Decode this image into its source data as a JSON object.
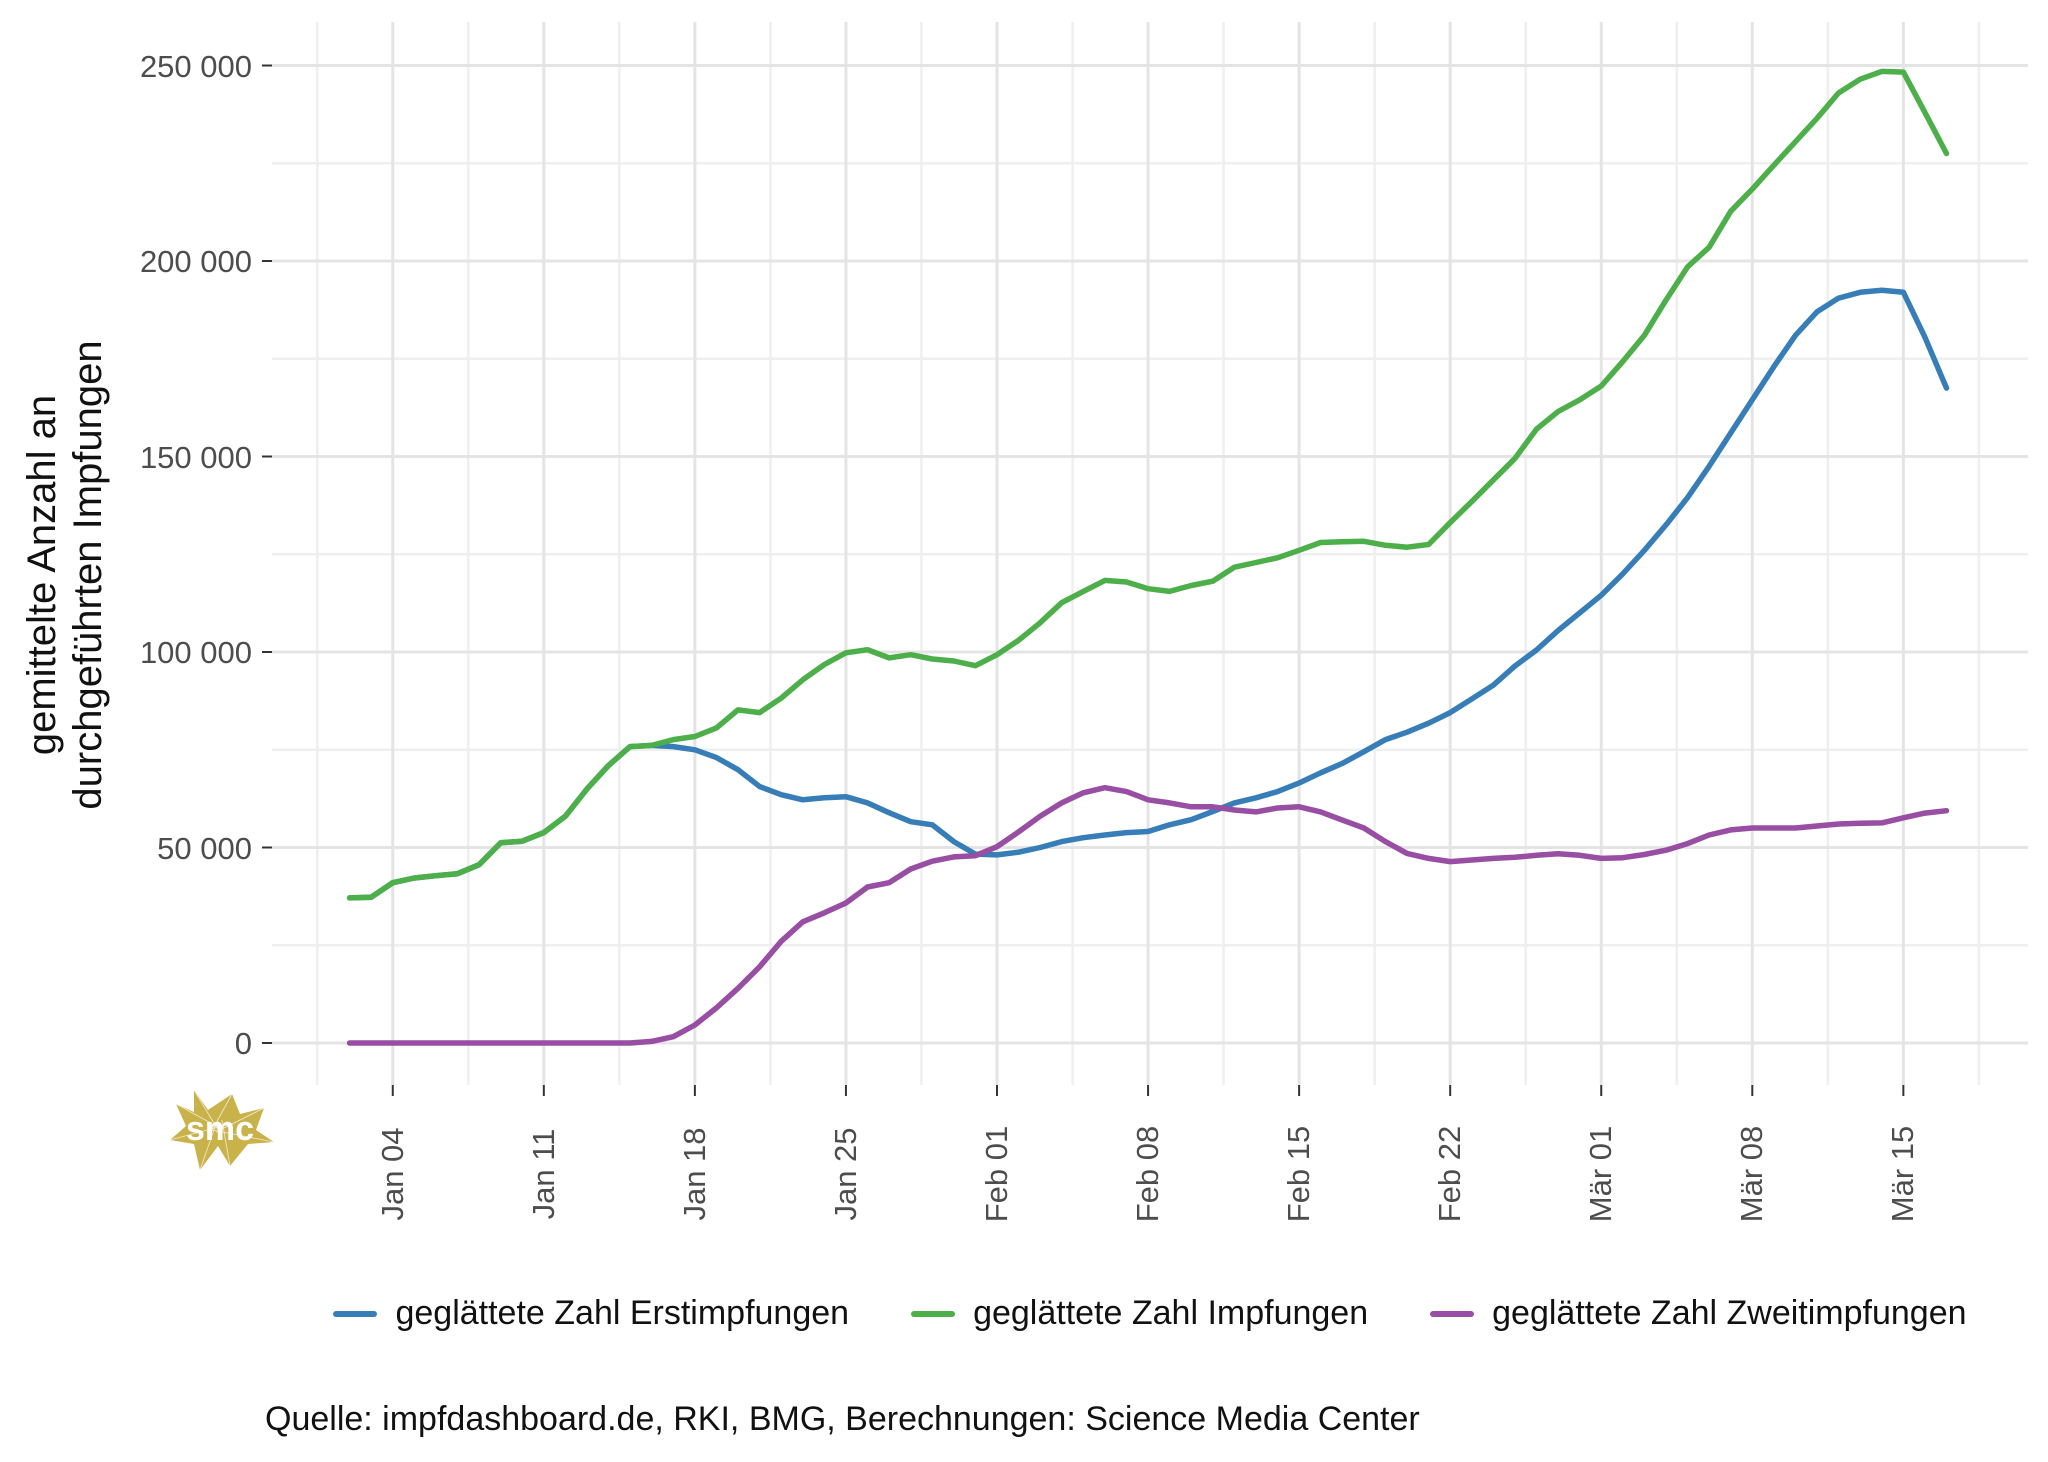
{
  "chart_data": {
    "type": "line",
    "title": "",
    "ylabel_line1": "gemittelte Anzahl an",
    "ylabel_line2": "durchgeführten Impfungen",
    "xlabel": "",
    "ylim": [
      0,
      250000
    ],
    "grid": "major and minor, light gray on white",
    "legend_position": "bottom",
    "dates": [
      "2021-01-02",
      "2021-01-03",
      "2021-01-04",
      "2021-01-05",
      "2021-01-06",
      "2021-01-07",
      "2021-01-08",
      "2021-01-09",
      "2021-01-10",
      "2021-01-11",
      "2021-01-12",
      "2021-01-13",
      "2021-01-14",
      "2021-01-15",
      "2021-01-16",
      "2021-01-17",
      "2021-01-18",
      "2021-01-19",
      "2021-01-20",
      "2021-01-21",
      "2021-01-22",
      "2021-01-23",
      "2021-01-24",
      "2021-01-25",
      "2021-01-26",
      "2021-01-27",
      "2021-01-28",
      "2021-01-29",
      "2021-01-30",
      "2021-01-31",
      "2021-02-01",
      "2021-02-02",
      "2021-02-03",
      "2021-02-04",
      "2021-02-05",
      "2021-02-06",
      "2021-02-07",
      "2021-02-08",
      "2021-02-09",
      "2021-02-10",
      "2021-02-11",
      "2021-02-12",
      "2021-02-13",
      "2021-02-14",
      "2021-02-15",
      "2021-02-16",
      "2021-02-17",
      "2021-02-18",
      "2021-02-19",
      "2021-02-20",
      "2021-02-21",
      "2021-02-22",
      "2021-02-23",
      "2021-02-24",
      "2021-02-25",
      "2021-02-26",
      "2021-02-27",
      "2021-02-28",
      "2021-03-01",
      "2021-03-02",
      "2021-03-03",
      "2021-03-04",
      "2021-03-05",
      "2021-03-06",
      "2021-03-07",
      "2021-03-08",
      "2021-03-09",
      "2021-03-10",
      "2021-03-11",
      "2021-03-12",
      "2021-03-13",
      "2021-03-14",
      "2021-03-15",
      "2021-03-16",
      "2021-03-17"
    ],
    "series": [
      {
        "name": "geglättete Zahl Erstimpfungen",
        "slug": "erstimpfungen",
        "color": "#377EB8",
        "values": [
          37100,
          37300,
          41000,
          42200,
          42800,
          43300,
          45600,
          51200,
          51600,
          53800,
          58000,
          65000,
          71000,
          75800,
          76100,
          75800,
          75000,
          73000,
          69900,
          65600,
          63500,
          62200,
          62700,
          63000,
          61400,
          58900,
          56600,
          55800,
          51500,
          48300,
          48100,
          48800,
          50000,
          51500,
          52500,
          53200,
          53800,
          54100,
          55800,
          57100,
          59200,
          61400,
          62700,
          64300,
          66500,
          69100,
          71500,
          74500,
          77600,
          79500,
          81800,
          84500,
          88000,
          91500,
          96400,
          100500,
          105500,
          110000,
          114500,
          120000,
          126000,
          132500,
          139500,
          147500,
          156000,
          164500,
          173000,
          181000,
          187000,
          190500,
          192000,
          192500,
          192000,
          180500,
          167500
        ]
      },
      {
        "name": "geglättete Zahl Impfungen",
        "slug": "impfungen",
        "color": "#4DAF4A",
        "values": [
          37100,
          37300,
          41000,
          42200,
          42800,
          43300,
          45600,
          51200,
          51600,
          53800,
          58000,
          65000,
          71000,
          75800,
          76100,
          77600,
          78400,
          80600,
          85200,
          84500,
          88200,
          92900,
          96800,
          99800,
          100600,
          98500,
          99300,
          98200,
          97700,
          96500,
          99300,
          103000,
          107500,
          112600,
          115500,
          118300,
          117900,
          116200,
          115500,
          117000,
          118100,
          121700,
          122900,
          124100,
          126000,
          128000,
          128200,
          128300,
          127300,
          126800,
          127500,
          133100,
          138500,
          144000,
          149500,
          157000,
          161500,
          164500,
          168000,
          174300,
          181000,
          190000,
          198500,
          203500,
          212700,
          218400,
          224500,
          230500,
          236500,
          243000,
          246500,
          248500,
          248300,
          238000,
          227500
        ]
      },
      {
        "name": "geglättete Zahl Zweitimpfungen",
        "slug": "zweitimpfungen",
        "color": "#984EA3",
        "values": [
          0,
          0,
          0,
          0,
          0,
          0,
          0,
          0,
          0,
          0,
          0,
          0,
          0,
          0,
          400,
          1600,
          4600,
          9000,
          14000,
          19500,
          26000,
          31000,
          33300,
          35800,
          39900,
          41000,
          44500,
          46500,
          47600,
          47900,
          50200,
          54000,
          58000,
          61400,
          64000,
          65300,
          64300,
          62200,
          61400,
          60400,
          60400,
          59600,
          59100,
          60100,
          60400,
          59100,
          57000,
          55000,
          51500,
          48500,
          47200,
          46400,
          46800,
          47200,
          47500,
          48000,
          48400,
          48000,
          47200,
          47400,
          48200,
          49300,
          51000,
          53200,
          54500,
          55000,
          55000,
          55000,
          55500,
          56000,
          56200,
          56300,
          57600,
          58800,
          59400
        ]
      }
    ],
    "x_ticks": [
      {
        "date": "2021-01-04",
        "label": "Jan 04"
      },
      {
        "date": "2021-01-11",
        "label": "Jan 11"
      },
      {
        "date": "2021-01-18",
        "label": "Jan 18"
      },
      {
        "date": "2021-01-25",
        "label": "Jan 25"
      },
      {
        "date": "2021-02-01",
        "label": "Feb 01"
      },
      {
        "date": "2021-02-08",
        "label": "Feb 08"
      },
      {
        "date": "2021-02-15",
        "label": "Feb 15"
      },
      {
        "date": "2021-02-22",
        "label": "Feb 22"
      },
      {
        "date": "2021-03-01",
        "label": "Mär 01"
      },
      {
        "date": "2021-03-08",
        "label": "Mär 08"
      },
      {
        "date": "2021-03-15",
        "label": "Mär 15"
      }
    ],
    "y_ticks": [
      {
        "value": 0,
        "label": "0"
      },
      {
        "value": 50000,
        "label": "50 000"
      },
      {
        "value": 100000,
        "label": "100 000"
      },
      {
        "value": 150000,
        "label": "150 000"
      },
      {
        "value": 200000,
        "label": "200 000"
      },
      {
        "value": 250000,
        "label": "250 000"
      }
    ]
  },
  "source_note": "Quelle: impfdashboard.de, RKI, BMG, Berechnungen: Science Media Center",
  "logo": {
    "text": "smc",
    "color": "#C9B24A"
  },
  "colors": {
    "grid_major": "#e4e4e4",
    "grid_minor": "#efefef",
    "tick": "#333333",
    "tick_text": "#4d4d4d",
    "text": "#111111"
  }
}
